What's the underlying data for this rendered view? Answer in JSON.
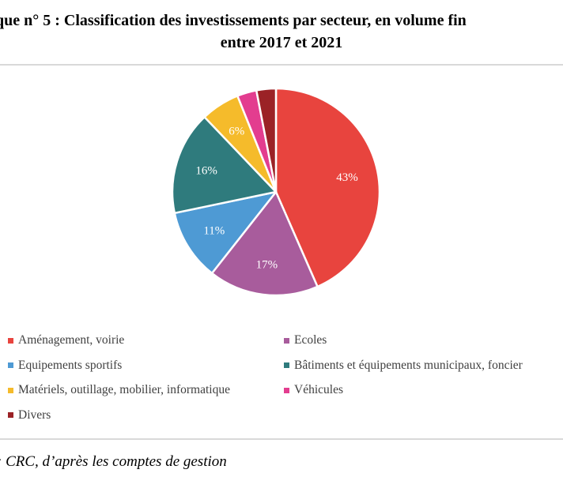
{
  "header": {
    "title_line1": "que n° 5 :  Classification des investissements par secteur, en volume fin",
    "title_line2": "entre 2017 et 2021"
  },
  "chart_data": {
    "type": "pie",
    "slices": [
      {
        "label": "Aménagement, voirie",
        "value": 43,
        "display": "43%",
        "color": "#e8443e"
      },
      {
        "label": "Ecoles",
        "value": 17,
        "display": "17%",
        "color": "#a85c9c"
      },
      {
        "label": "Equipements sportifs",
        "value": 11,
        "display": "11%",
        "color": "#4e9ad4"
      },
      {
        "label": "Bâtiments et équipements municipaux, foncier",
        "value": 16,
        "display": "16%",
        "color": "#2f7b7d"
      },
      {
        "label": "Matériels, outillage, mobilier, informatique",
        "value": 6,
        "display": "6%",
        "color": "#f5bb2b"
      },
      {
        "label": "Véhicules",
        "value": 3,
        "display": "",
        "color": "#e33d8f"
      },
      {
        "label": "Divers",
        "value": 3,
        "display": "",
        "color": "#9b2226"
      }
    ],
    "legend_position": "bottom"
  },
  "footer": {
    "source": ": CRC, d’après les comptes de gestion"
  }
}
